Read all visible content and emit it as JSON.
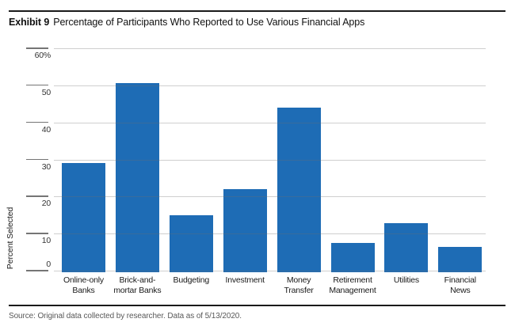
{
  "header": {
    "exhibit_label": "Exhibit 9",
    "title": "Percentage of Participants Who Reported to Use Various Financial Apps"
  },
  "footer": {
    "source": "Source: Original data collected by researcher. Data as of 5/13/2020."
  },
  "chart_data": {
    "type": "bar",
    "title": "Percentage of Participants Who Reported to Use Various Financial Apps",
    "xlabel": "",
    "ylabel": "Percent Selected",
    "ylim": [
      0,
      60
    ],
    "grid": true,
    "gridlines_over_bars": true,
    "legend": "none",
    "bar_color": "#1e6cb5",
    "categories": [
      "Online-only Banks",
      "Brick-and-mortar Banks",
      "Budgeting",
      "Investment",
      "Money Transfer",
      "Retirement Management",
      "Utilities",
      "Financial News"
    ],
    "category_label_lines": [
      [
        "Online-only",
        "Banks"
      ],
      [
        "Brick-and-",
        "mortar Banks"
      ],
      [
        "Budgeting"
      ],
      [
        "Investment"
      ],
      [
        "Money",
        "Transfer"
      ],
      [
        "Retirement",
        "Management"
      ],
      [
        "Utilities"
      ],
      [
        "Financial",
        "News"
      ]
    ],
    "values": [
      29,
      50.5,
      15,
      22,
      44,
      7.5,
      12.8,
      6.3
    ],
    "yticks": [
      {
        "value": 60,
        "label": "60%"
      },
      {
        "value": 50,
        "label": "50"
      },
      {
        "value": 40,
        "label": "40"
      },
      {
        "value": 30,
        "label": "30"
      },
      {
        "value": 20,
        "label": "20"
      },
      {
        "value": 10,
        "label": "10"
      },
      {
        "value": 0,
        "label": "0"
      }
    ]
  }
}
